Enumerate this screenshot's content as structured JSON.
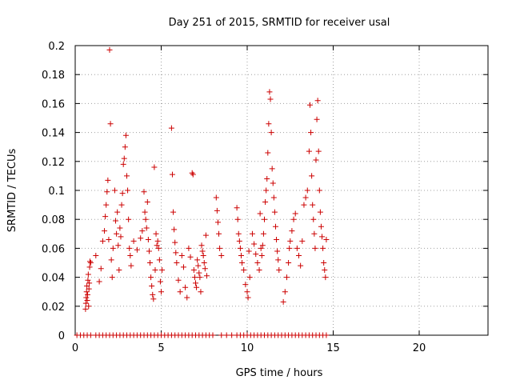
{
  "chart_data": {
    "type": "scatter",
    "title": "Day 251 of 2015, SRMTID for receiver usal",
    "xlabel": "GPS time / hours",
    "ylabel": "SRMTID / TECUs",
    "xlim": [
      0,
      24
    ],
    "ylim": [
      0,
      0.2
    ],
    "x_ticks": [
      "0",
      "5",
      "10",
      "15",
      "20"
    ],
    "x_tick_values": [
      0,
      5,
      10,
      15,
      20
    ],
    "y_ticks": [
      "0",
      "0.02",
      "0.04",
      "0.06",
      "0.08",
      "0.1",
      "0.12",
      "0.14",
      "0.16",
      "0.18",
      "0.2"
    ],
    "y_tick_values": [
      0,
      0.02,
      0.04,
      0.06,
      0.08,
      0.1,
      0.12,
      0.14,
      0.16,
      0.18,
      0.2
    ],
    "grid": true,
    "marker": "+",
    "series_color": "#cc0000",
    "points": [
      [
        0.6,
        0.018
      ],
      [
        0.62,
        0.022
      ],
      [
        0.64,
        0.026
      ],
      [
        0.66,
        0.03
      ],
      [
        0.68,
        0.034
      ],
      [
        0.7,
        0.024
      ],
      [
        0.72,
        0.028
      ],
      [
        0.74,
        0.038
      ],
      [
        0.76,
        0.042
      ],
      [
        0.78,
        0.02
      ],
      [
        0.8,
        0.032
      ],
      [
        0.82,
        0.036
      ],
      [
        0.84,
        0.047
      ],
      [
        0.86,
        0.051
      ],
      [
        0.9,
        0.05
      ],
      [
        1.2,
        0.055
      ],
      [
        1.4,
        0.037
      ],
      [
        1.5,
        0.046
      ],
      [
        1.6,
        0.065
      ],
      [
        1.7,
        0.072
      ],
      [
        1.75,
        0.082
      ],
      [
        1.8,
        0.09
      ],
      [
        1.85,
        0.099
      ],
      [
        1.9,
        0.107
      ],
      [
        1.95,
        0.066
      ],
      [
        2.0,
        0.197
      ],
      [
        2.05,
        0.146
      ],
      [
        2.1,
        0.052
      ],
      [
        2.15,
        0.04
      ],
      [
        2.2,
        0.06
      ],
      [
        2.3,
        0.1
      ],
      [
        2.35,
        0.079
      ],
      [
        2.4,
        0.07
      ],
      [
        2.45,
        0.085
      ],
      [
        2.5,
        0.062
      ],
      [
        2.55,
        0.045
      ],
      [
        2.6,
        0.074
      ],
      [
        2.65,
        0.068
      ],
      [
        2.7,
        0.09
      ],
      [
        2.75,
        0.098
      ],
      [
        2.8,
        0.118
      ],
      [
        2.85,
        0.122
      ],
      [
        2.9,
        0.13
      ],
      [
        2.95,
        0.138
      ],
      [
        3.0,
        0.11
      ],
      [
        3.05,
        0.1
      ],
      [
        3.1,
        0.08
      ],
      [
        3.15,
        0.06
      ],
      [
        3.2,
        0.055
      ],
      [
        3.25,
        0.048
      ],
      [
        3.4,
        0.065
      ],
      [
        3.6,
        0.059
      ],
      [
        3.8,
        0.067
      ],
      [
        3.9,
        0.072
      ],
      [
        4.0,
        0.099
      ],
      [
        4.05,
        0.085
      ],
      [
        4.1,
        0.08
      ],
      [
        4.15,
        0.074
      ],
      [
        4.2,
        0.092
      ],
      [
        4.25,
        0.066
      ],
      [
        4.3,
        0.058
      ],
      [
        4.35,
        0.05
      ],
      [
        4.4,
        0.04
      ],
      [
        4.45,
        0.034
      ],
      [
        4.5,
        0.028
      ],
      [
        4.55,
        0.025
      ],
      [
        4.6,
        0.116
      ],
      [
        4.65,
        0.045
      ],
      [
        4.7,
        0.07
      ],
      [
        4.75,
        0.062
      ],
      [
        4.8,
        0.065
      ],
      [
        4.85,
        0.06
      ],
      [
        4.9,
        0.052
      ],
      [
        4.95,
        0.037
      ],
      [
        5.0,
        0.03
      ],
      [
        5.05,
        0.045
      ],
      [
        5.6,
        0.143
      ],
      [
        5.65,
        0.111
      ],
      [
        5.7,
        0.085
      ],
      [
        5.75,
        0.073
      ],
      [
        5.8,
        0.064
      ],
      [
        5.85,
        0.057
      ],
      [
        5.9,
        0.05
      ],
      [
        6.0,
        0.038
      ],
      [
        6.1,
        0.03
      ],
      [
        6.2,
        0.055
      ],
      [
        6.3,
        0.047
      ],
      [
        6.4,
        0.033
      ],
      [
        6.5,
        0.026
      ],
      [
        6.6,
        0.06
      ],
      [
        6.7,
        0.054
      ],
      [
        6.8,
        0.112
      ],
      [
        6.85,
        0.111
      ],
      [
        6.9,
        0.045
      ],
      [
        6.95,
        0.04
      ],
      [
        7.0,
        0.036
      ],
      [
        7.05,
        0.033
      ],
      [
        7.1,
        0.052
      ],
      [
        7.15,
        0.048
      ],
      [
        7.2,
        0.043
      ],
      [
        7.25,
        0.04
      ],
      [
        7.3,
        0.03
      ],
      [
        7.35,
        0.062
      ],
      [
        7.4,
        0.058
      ],
      [
        7.45,
        0.055
      ],
      [
        7.5,
        0.05
      ],
      [
        7.55,
        0.046
      ],
      [
        7.6,
        0.069
      ],
      [
        7.65,
        0.041
      ],
      [
        8.2,
        0.095
      ],
      [
        8.25,
        0.086
      ],
      [
        8.3,
        0.078
      ],
      [
        8.35,
        0.07
      ],
      [
        8.4,
        0.06
      ],
      [
        8.5,
        0.055
      ],
      [
        9.4,
        0.088
      ],
      [
        9.45,
        0.08
      ],
      [
        9.5,
        0.07
      ],
      [
        9.55,
        0.065
      ],
      [
        9.6,
        0.06
      ],
      [
        9.65,
        0.055
      ],
      [
        9.7,
        0.05
      ],
      [
        9.8,
        0.045
      ],
      [
        9.9,
        0.035
      ],
      [
        10.0,
        0.03
      ],
      [
        10.05,
        0.026
      ],
      [
        10.1,
        0.058
      ],
      [
        10.15,
        0.04
      ],
      [
        10.3,
        0.07
      ],
      [
        10.4,
        0.063
      ],
      [
        10.5,
        0.056
      ],
      [
        10.6,
        0.05
      ],
      [
        10.7,
        0.045
      ],
      [
        10.75,
        0.084
      ],
      [
        10.8,
        0.06
      ],
      [
        10.85,
        0.055
      ],
      [
        10.9,
        0.062
      ],
      [
        10.95,
        0.07
      ],
      [
        11.0,
        0.08
      ],
      [
        11.05,
        0.092
      ],
      [
        11.1,
        0.1
      ],
      [
        11.15,
        0.108
      ],
      [
        11.2,
        0.126
      ],
      [
        11.25,
        0.146
      ],
      [
        11.3,
        0.168
      ],
      [
        11.35,
        0.163
      ],
      [
        11.4,
        0.14
      ],
      [
        11.45,
        0.115
      ],
      [
        11.5,
        0.105
      ],
      [
        11.55,
        0.095
      ],
      [
        11.6,
        0.085
      ],
      [
        11.65,
        0.075
      ],
      [
        11.7,
        0.066
      ],
      [
        11.75,
        0.058
      ],
      [
        11.8,
        0.052
      ],
      [
        11.85,
        0.045
      ],
      [
        12.1,
        0.023
      ],
      [
        12.2,
        0.03
      ],
      [
        12.3,
        0.04
      ],
      [
        12.4,
        0.05
      ],
      [
        12.45,
        0.06
      ],
      [
        12.5,
        0.065
      ],
      [
        12.6,
        0.072
      ],
      [
        12.7,
        0.08
      ],
      [
        12.8,
        0.084
      ],
      [
        12.9,
        0.06
      ],
      [
        13.0,
        0.055
      ],
      [
        13.1,
        0.048
      ],
      [
        13.2,
        0.065
      ],
      [
        13.3,
        0.09
      ],
      [
        13.4,
        0.095
      ],
      [
        13.5,
        0.1
      ],
      [
        13.6,
        0.127
      ],
      [
        13.65,
        0.159
      ],
      [
        13.7,
        0.14
      ],
      [
        13.75,
        0.11
      ],
      [
        13.8,
        0.09
      ],
      [
        13.85,
        0.08
      ],
      [
        13.9,
        0.07
      ],
      [
        13.95,
        0.06
      ],
      [
        14.0,
        0.121
      ],
      [
        14.05,
        0.149
      ],
      [
        14.1,
        0.162
      ],
      [
        14.15,
        0.127
      ],
      [
        14.2,
        0.1
      ],
      [
        14.25,
        0.085
      ],
      [
        14.3,
        0.075
      ],
      [
        14.35,
        0.068
      ],
      [
        14.4,
        0.06
      ],
      [
        14.45,
        0.05
      ],
      [
        14.5,
        0.045
      ],
      [
        14.55,
        0.04
      ],
      [
        14.6,
        0.066
      ]
    ],
    "zero_points_x": [
      0.1,
      0.3,
      0.5,
      0.7,
      0.9,
      1.2,
      1.4,
      1.6,
      1.8,
      2.0,
      2.2,
      2.4,
      2.6,
      2.8,
      3.0,
      3.2,
      3.4,
      3.6,
      3.8,
      4.0,
      4.2,
      4.4,
      4.6,
      4.8,
      5.0,
      5.2,
      5.4,
      5.6,
      5.8,
      6.0,
      6.2,
      6.4,
      6.6,
      6.8,
      7.0,
      7.2,
      7.4,
      7.6,
      7.8,
      8.0,
      8.5,
      8.8,
      9.1,
      9.4,
      9.6,
      9.8,
      10.0,
      10.2,
      10.4,
      10.6,
      10.8,
      11.0,
      11.2,
      11.4,
      11.6,
      11.8,
      12.0,
      12.2,
      12.4,
      12.6,
      12.8,
      13.0,
      13.2,
      13.4,
      13.6,
      13.8,
      14.0,
      14.2,
      14.4,
      14.6
    ]
  }
}
